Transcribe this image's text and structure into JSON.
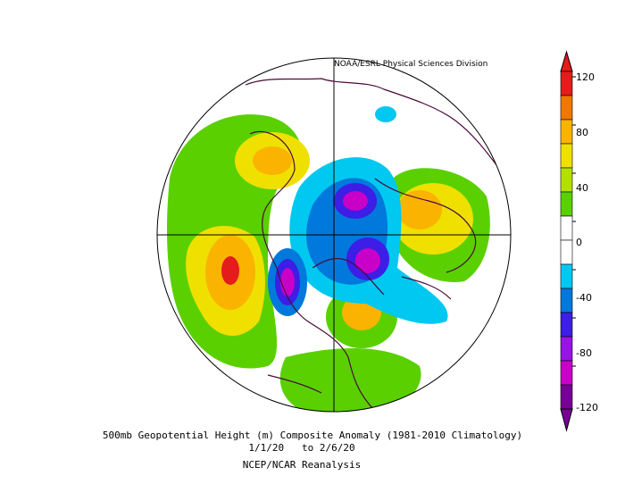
{
  "credit": "NOAA/ESRL Physical Sciences Division",
  "caption": {
    "line1": "500mb Geopotential Height (m) Composite Anomaly (1981-2010 Climatology)",
    "line2": "1/1/20   to 2/6/20",
    "line3": "NCEP/NCAR Reanalysis"
  },
  "colorbar": {
    "ticks": [
      "120",
      "80",
      "40",
      "0",
      "-40",
      "-80",
      "-120"
    ],
    "colors": [
      "#e41c1c",
      "#f07800",
      "#fab400",
      "#f0e000",
      "#b4e000",
      "#5ad000",
      "#ffffff",
      "#ffffff",
      "#00c8f0",
      "#0078dc",
      "#3c1ee6",
      "#9614e6",
      "#c800c8",
      "#780096"
    ]
  }
}
